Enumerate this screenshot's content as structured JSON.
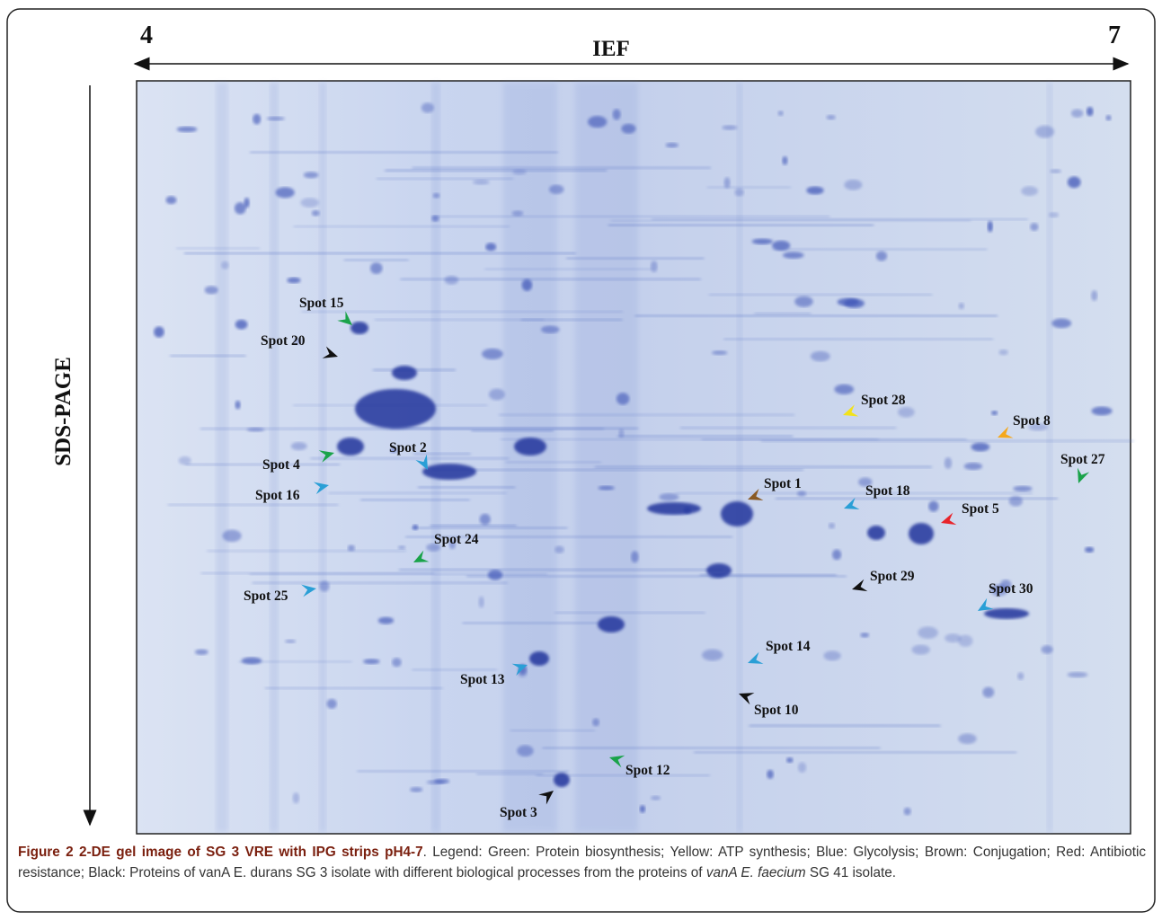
{
  "axis": {
    "ph_start": "4",
    "ph_end": "7",
    "x_label": "IEF",
    "y_label": "SDS-PAGE"
  },
  "spots": [
    "Spot 15",
    "Spot  20",
    "Spot 4",
    "Spot 2",
    "Spot 16",
    "Spot 24",
    "Spot 25",
    "Spot 13",
    "Spot 3",
    "Spot 12",
    "Spot 10",
    "Spot 14",
    "Spot 1",
    "Spot 18",
    "Spot 5",
    "Spot 29",
    "Spot 30",
    "Spot 28",
    "Spot 8",
    "Spot 27"
  ],
  "caption": {
    "label": "Figure 2",
    "title": "2-DE gel image of SG 3 VRE with IPG strips pH4-7",
    "text": ". Legend: Green: Protein biosynthesis; Yellow: ATP synthesis; Blue: Glycolysis; Brown: Conjugation; Red: Antibiotic resistance; Black: Proteins of vanA E. durans SG 3 isolate with different biological processes from the proteins of ",
    "italic": "vanA E. faecium",
    "end": " SG 41 isolate."
  }
}
